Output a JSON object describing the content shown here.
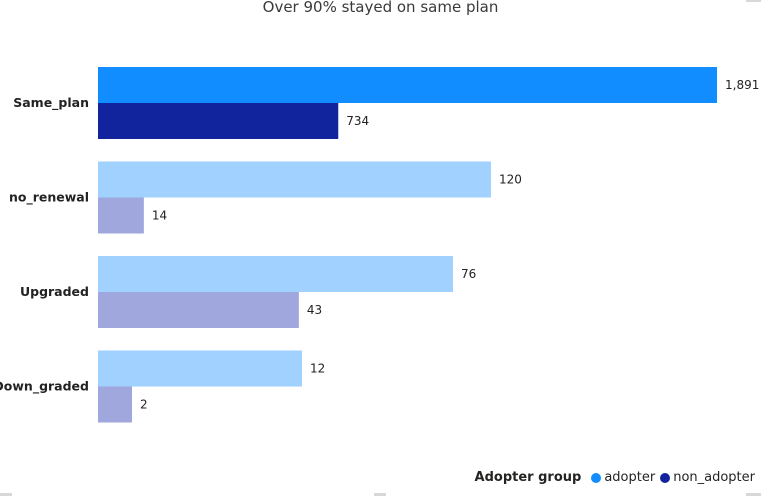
{
  "chart_data": {
    "type": "bar",
    "orientation": "horizontal",
    "title": "Over 90% stayed on same plan",
    "categories": [
      "Same_plan",
      "no_renewal",
      "Upgraded",
      "Down_graded"
    ],
    "series": [
      {
        "name": "adopter",
        "values": [
          1891,
          120,
          76,
          12
        ],
        "value_labels": [
          "1,891",
          "120",
          "76",
          "12"
        ],
        "colors": [
          "#118dff",
          "#a0d1ff",
          "#a0d1ff",
          "#a0d1ff"
        ]
      },
      {
        "name": "non_adopter",
        "values": [
          734,
          14,
          43,
          2
        ],
        "value_labels": [
          "734",
          "14",
          "43",
          "2"
        ],
        "colors": [
          "#12239e",
          "#a0a7dc",
          "#a0a7dc",
          "#a0a7dc"
        ]
      }
    ],
    "axis_scales": "independent per category group",
    "legend": {
      "title": "Adopter group",
      "placement": "bottom-right",
      "entries": [
        {
          "label": "adopter",
          "color": "#118dff"
        },
        {
          "label": "non_adopter",
          "color": "#12239e"
        }
      ]
    },
    "grid": false
  }
}
